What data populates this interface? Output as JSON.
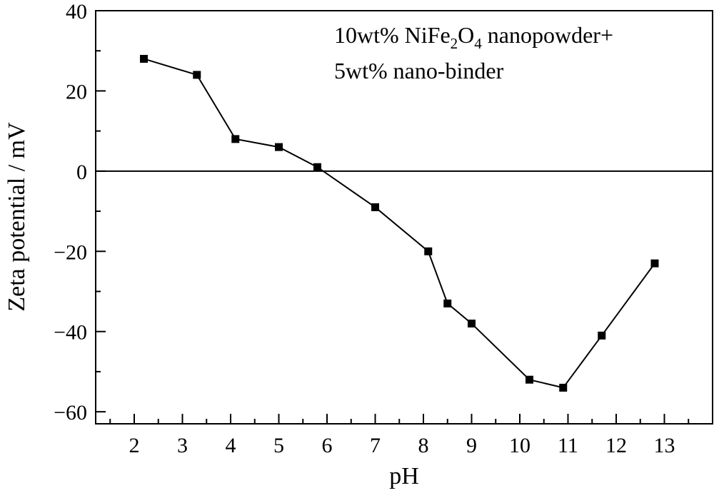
{
  "chart_data": {
    "type": "line",
    "title": "",
    "xlabel": "pH",
    "ylabel": "Zeta potential / mV",
    "xlim": [
      1.2,
      14.0
    ],
    "ylim": [
      -63,
      40
    ],
    "xticks": [
      2,
      3,
      4,
      5,
      6,
      7,
      8,
      9,
      10,
      11,
      12,
      13
    ],
    "xtick_labels": [
      "2",
      "3",
      "4",
      "5",
      "6",
      "7",
      "8",
      "9",
      "10",
      "11",
      "12",
      "13"
    ],
    "yticks": [
      -60,
      -40,
      -20,
      0,
      20,
      40
    ],
    "ytick_labels": [
      "−60",
      "−40",
      "−20",
      "0",
      "20",
      "40"
    ],
    "zero_line": true,
    "grid": false,
    "annotation": {
      "line1_prefix": "10wt% NiFe",
      "line1_sub1": "2",
      "line1_mid": "O",
      "line1_sub2": "4",
      "line1_suffix": " nanopowder+",
      "line2": "5wt% nano-binder"
    },
    "series": [
      {
        "marker": "square",
        "color": "#000000",
        "x": [
          2.2,
          3.3,
          4.1,
          5.0,
          5.8,
          7.0,
          8.1,
          8.5,
          9.0,
          10.2,
          10.9,
          11.7,
          12.8
        ],
        "y": [
          28,
          24,
          8,
          6,
          1,
          -9,
          -20,
          -33,
          -38,
          -52,
          -54,
          -41,
          -23
        ]
      }
    ]
  }
}
